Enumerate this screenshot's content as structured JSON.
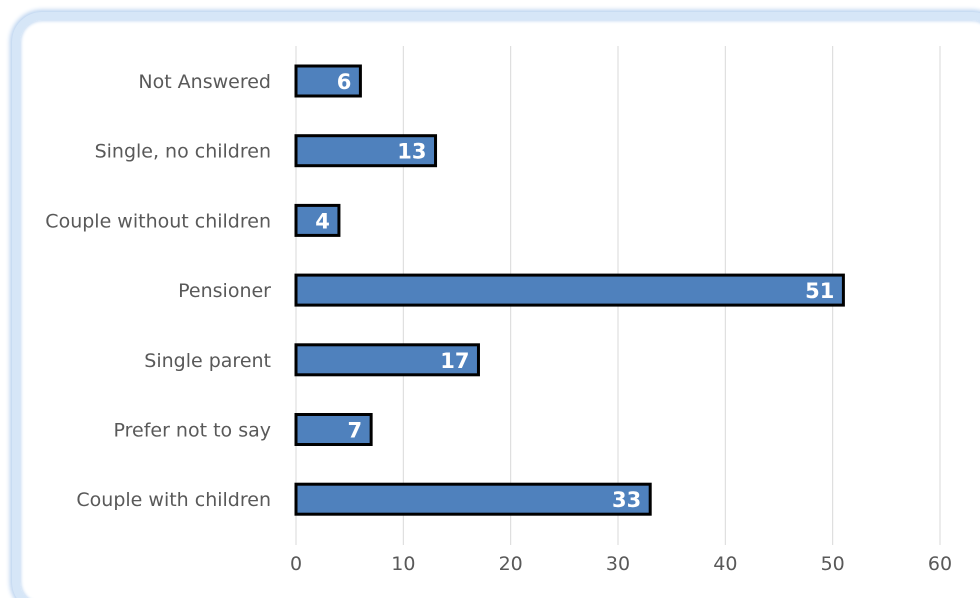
{
  "chart_data": {
    "type": "bar",
    "orientation": "horizontal",
    "categories": [
      "Not Answered",
      "Single, no children",
      "Couple without children",
      "Pensioner",
      "Single parent",
      "Prefer not to say",
      "Couple with children"
    ],
    "values": [
      6,
      13,
      4,
      51,
      17,
      7,
      33
    ],
    "x_ticks": [
      "0",
      "10",
      "20",
      "30",
      "40",
      "50",
      "60"
    ],
    "xlim": [
      0,
      60
    ],
    "title": "",
    "xlabel": "",
    "ylabel": "",
    "grid": "vertical",
    "legend": "none",
    "data_labels": true,
    "colors": {
      "bar_fill": "#4f81bd",
      "bar_stroke": "#000000",
      "grid": "#d9d9d9",
      "text": "#595959",
      "label_text": "#ffffff"
    }
  }
}
